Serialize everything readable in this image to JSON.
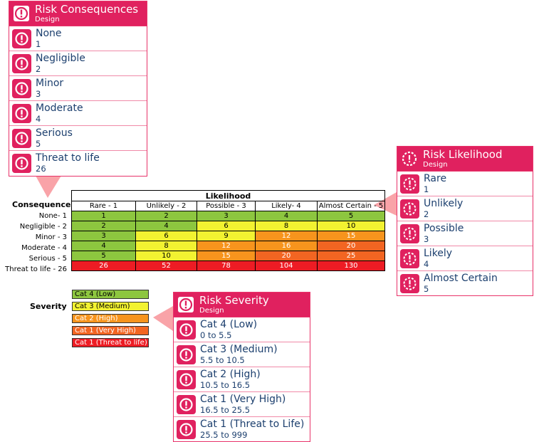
{
  "consequences": {
    "title": "Risk Consequences",
    "subtitle": "Design",
    "items": [
      {
        "label": "None",
        "value": "1"
      },
      {
        "label": "Negligible",
        "value": "2"
      },
      {
        "label": "Minor",
        "value": "3"
      },
      {
        "label": "Moderate",
        "value": "4"
      },
      {
        "label": "Serious",
        "value": "5"
      },
      {
        "label": "Threat to life",
        "value": "26"
      }
    ]
  },
  "likelihood": {
    "title": "Risk Likelihood",
    "subtitle": "Design",
    "items": [
      {
        "label": "Rare",
        "value": "1"
      },
      {
        "label": "Unlikely",
        "value": "2"
      },
      {
        "label": "Possible",
        "value": "3"
      },
      {
        "label": "Likely",
        "value": "4"
      },
      {
        "label": "Almost Certain",
        "value": "5"
      }
    ]
  },
  "severity": {
    "title": "Risk Severity",
    "subtitle": "Design",
    "items": [
      {
        "label": "Cat 4 (Low)",
        "value": "0 to 5.5"
      },
      {
        "label": "Cat 3 (Medium)",
        "value": "5.5 to 10.5"
      },
      {
        "label": "Cat 2 (High)",
        "value": "10.5 to 16.5"
      },
      {
        "label": "Cat 1 (Very High)",
        "value": "16.5 to 25.5"
      },
      {
        "label": "Cat 1 (Threat to Life)",
        "value": "25.5 to 999"
      }
    ]
  },
  "matrix": {
    "consequence_label": "Consequence",
    "likelihood_label": "Likelihood",
    "columns": [
      "Rare - 1",
      "Unlikely - 2",
      "Possible - 3",
      "Likely- 4",
      "Almost Certain - 5"
    ],
    "rows": [
      {
        "label": "None- 1",
        "cells": [
          "1",
          "2",
          "3",
          "4",
          "5"
        ]
      },
      {
        "label": "Negligible - 2",
        "cells": [
          "2",
          "4",
          "6",
          "8",
          "10"
        ]
      },
      {
        "label": "Minor - 3",
        "cells": [
          "3",
          "6",
          "9",
          "12",
          "15"
        ]
      },
      {
        "label": "Moderate - 4",
        "cells": [
          "4",
          "8",
          "12",
          "16",
          "20"
        ]
      },
      {
        "label": "Serious - 5",
        "cells": [
          "5",
          "10",
          "15",
          "20",
          "25"
        ]
      },
      {
        "label": "Threat to life - 26",
        "cells": [
          "26",
          "52",
          "78",
          "104",
          "130"
        ]
      }
    ]
  },
  "severity_legend": {
    "label": "Severity",
    "items": [
      {
        "label": "Cat 4 (Low)",
        "color": "#8dc63f"
      },
      {
        "label": "Cat 3 (Medium)",
        "color": "#f2f231"
      },
      {
        "label": "Cat 2 (High)",
        "color": "#f7941d"
      },
      {
        "label": "Cat 1 (Very High)",
        "color": "#f26522"
      },
      {
        "label": "Cat 1 (Threat to life)",
        "color": "#ed1c24"
      }
    ]
  },
  "colors": {
    "accent": "#e0215f",
    "text": "#1c3f6e",
    "low": "#8dc63f",
    "medium": "#f2f231",
    "high": "#f7941d",
    "very_high": "#f26522",
    "threat": "#ed1c24",
    "callout": "#f9a3a8"
  },
  "icons": {
    "item": "exclamation-circle-icon",
    "likelihood_header": "dashed-alert-circle-icon"
  }
}
